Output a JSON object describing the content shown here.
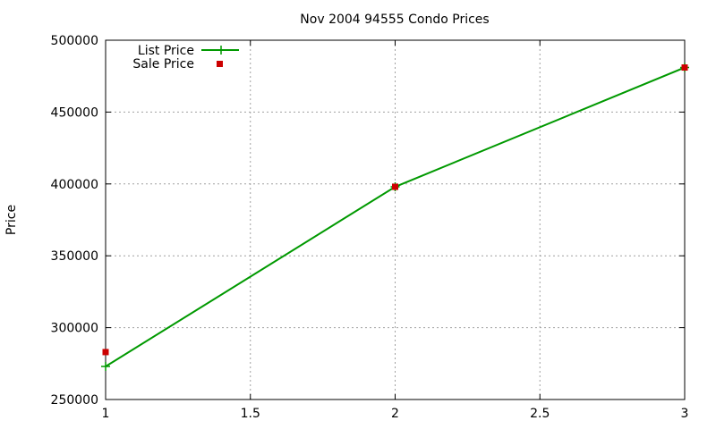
{
  "chart_data": {
    "type": "line",
    "title": "Nov 2004 94555 Condo Prices",
    "xlabel": "",
    "ylabel": "Price",
    "xlim": [
      1,
      3
    ],
    "ylim": [
      250000,
      500000
    ],
    "x_ticks": [
      "1",
      "1.5",
      "2",
      "2.5",
      "3"
    ],
    "y_ticks": [
      "250000",
      "300000",
      "350000",
      "400000",
      "450000",
      "500000"
    ],
    "grid": true,
    "legend_position": "top-left",
    "series": [
      {
        "name": "List Price",
        "style": "lines+points",
        "marker": "plus",
        "color": "#009900",
        "x": [
          1,
          2,
          3
        ],
        "y": [
          273000,
          398000,
          481000
        ]
      },
      {
        "name": "Sale Price",
        "style": "points",
        "marker": "square",
        "color": "#cc0000",
        "x": [
          1,
          2,
          3
        ],
        "y": [
          283000,
          398000,
          481000
        ]
      }
    ]
  }
}
